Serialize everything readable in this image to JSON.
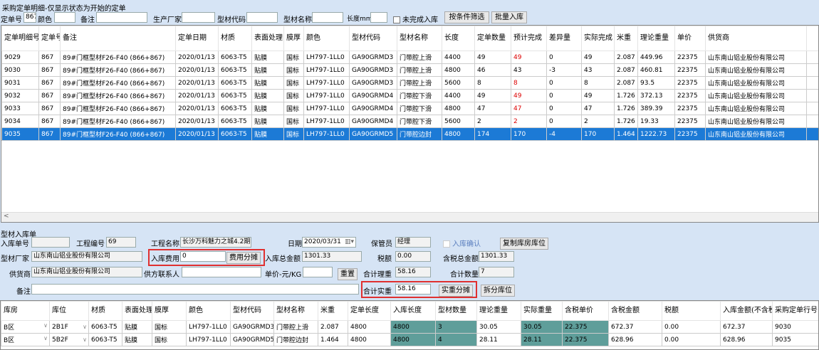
{
  "window_title": "采购定单明细-仅显示状态为开始的定单",
  "filters": {
    "order_no_label": "定单号",
    "order_no": "867",
    "color_label": "颜色",
    "color": "",
    "remark_label": "备注",
    "remark": "",
    "maker_label": "生产厂家",
    "maker": "",
    "code_label": "型材代码",
    "code": "",
    "name_label": "型材名称",
    "name": "",
    "length_label": "长度mm",
    "length": "",
    "incomplete_label": "未完成入库",
    "incomplete_checked": false,
    "filter_button": "按条件筛选",
    "batch_button": "批量入库"
  },
  "order_grid": {
    "columns": [
      "定单明细号",
      "定单号",
      "备注",
      "定单日期",
      "材质",
      "表面处理",
      "膜厚",
      "颜色",
      "型材代码",
      "型材名称",
      "长度",
      "定单数量",
      "预计完成",
      "差异量",
      "实际完成",
      "米重",
      "理论重量",
      "单价",
      "供货商",
      ""
    ],
    "rows": [
      [
        "9029",
        "867",
        "89#门框型材F26-F40 (866+867)",
        "2020/01/13",
        "6063-T5",
        "贴膜",
        "国标",
        "LH797-1LL0",
        "GA90GRMD3",
        "门带腔上滑",
        "4400",
        "49",
        "49",
        "0",
        "49",
        "2.087",
        "449.96",
        "22375",
        "山东南山铝业股份有限公司",
        ""
      ],
      [
        "9030",
        "867",
        "89#门框型材F26-F40 (866+867)",
        "2020/01/13",
        "6063-T5",
        "贴膜",
        "国标",
        "LH797-1LL0",
        "GA90GRMD3",
        "门带腔上滑",
        "4800",
        "46",
        "43",
        "-3",
        "43",
        "2.087",
        "460.81",
        "22375",
        "山东南山铝业股份有限公司",
        ""
      ],
      [
        "9031",
        "867",
        "89#门框型材F26-F40 (866+867)",
        "2020/01/13",
        "6063-T5",
        "贴膜",
        "国标",
        "LH797-1LL0",
        "GA90GRMD3",
        "门带腔上滑",
        "5600",
        "8",
        "8",
        "0",
        "8",
        "2.087",
        "93.5",
        "22375",
        "山东南山铝业股份有限公司",
        ""
      ],
      [
        "9032",
        "867",
        "89#门框型材F26-F40 (866+867)",
        "2020/01/13",
        "6063-T5",
        "贴膜",
        "国标",
        "LH797-1LL0",
        "GA90GRMD4",
        "门带腔下滑",
        "4400",
        "49",
        "49",
        "0",
        "49",
        "1.726",
        "372.13",
        "22375",
        "山东南山铝业股份有限公司",
        ""
      ],
      [
        "9033",
        "867",
        "89#门框型材F26-F40 (866+867)",
        "2020/01/13",
        "6063-T5",
        "贴膜",
        "国标",
        "LH797-1LL0",
        "GA90GRMD4",
        "门带腔下滑",
        "4800",
        "47",
        "47",
        "0",
        "47",
        "1.726",
        "389.39",
        "22375",
        "山东南山铝业股份有限公司",
        ""
      ],
      [
        "9034",
        "867",
        "89#门框型材F26-F40 (866+867)",
        "2020/01/13",
        "6063-T5",
        "贴膜",
        "国标",
        "LH797-1LL0",
        "GA90GRMD4",
        "门带腔下滑",
        "5600",
        "2",
        "2",
        "0",
        "2",
        "1.726",
        "19.33",
        "22375",
        "山东南山铝业股份有限公司",
        ""
      ],
      [
        "9035",
        "867",
        "89#门框型材F26-F40 (866+867)",
        "2020/01/13",
        "6063-T5",
        "贴膜",
        "国标",
        "LH797-1LL0",
        "GA90GRMD5",
        "门带腔边封",
        "4800",
        "174",
        "170",
        "-4",
        "170",
        "1.464",
        "1222.73",
        "22375",
        "山东南山铝业股份有限公司",
        ""
      ]
    ],
    "red_rows": [
      0,
      2,
      3,
      4,
      5
    ],
    "selected_row": 6
  },
  "receipt": {
    "section_title": "型材入库单",
    "receipt_no_label": "入库单号",
    "receipt_no": "",
    "project_no_label": "工程编号",
    "project_no": "69",
    "project_name_label": "工程名称",
    "project_name": "长沙万科魅力之城4.2期",
    "date_label": "日期",
    "date": "2020/03/31",
    "keeper_label": "保管员",
    "keeper": "经理",
    "confirm_label": "入库确认",
    "copy_button": "复制库房库位",
    "maker_label": "型材厂家",
    "maker": "山东南山铝业股份有限公司",
    "fee_label": "入库费用",
    "fee": "0",
    "fee_split_button": "费用分摊",
    "total_label": "入库总金额",
    "total": "1301.33",
    "tax_label": "税额",
    "tax": "0.00",
    "total_tax_label": "含税总金额",
    "total_tax": "1301.33",
    "supplier_label": "供货商",
    "supplier": "山东南山铝业股份有限公司",
    "contact_label": "供方联系人",
    "contact": "",
    "unit_price_label": "单价-元/KG",
    "unit_price": "",
    "reset_button": "重置",
    "theory_weight_label": "合计理重",
    "theory_weight": "58.16",
    "qty_label": "合计数量",
    "qty": "7",
    "remark_label": "备注",
    "remark": "",
    "actual_weight_label": "合计实重",
    "actual_weight": "58.16",
    "weight_split_button": "实重分摊",
    "split_loc_button": "拆分库位"
  },
  "receipt_grid": {
    "columns": [
      "库房",
      "库位",
      "材质",
      "表面处理",
      "膜厚",
      "颜色",
      "型材代码",
      "型材名称",
      "米重",
      "定单长度",
      "入库长度",
      "型材数量",
      "理论重量",
      "实际重量",
      "含税单价",
      "含税金额",
      "税额",
      "入库金额(不含税)",
      "采购定单行号"
    ],
    "rows": [
      [
        "B区",
        "2B1F",
        "6063-T5",
        "贴膜",
        "国标",
        "LH797-1LL0",
        "GA90GRMD3",
        "门带腔上滑",
        "2.087",
        "4800",
        "4800",
        "3",
        "30.05",
        "30.05",
        "22.375",
        "672.37",
        "0.00",
        "672.37",
        "9030"
      ],
      [
        "B区",
        "5B2F",
        "6063-T5",
        "贴膜",
        "国标",
        "LH797-1LL0",
        "GA90GRMD5",
        "门带腔边封",
        "1.464",
        "4800",
        "4800",
        "4",
        "28.11",
        "28.11",
        "22.375",
        "628.96",
        "0.00",
        "628.96",
        "9035"
      ]
    ],
    "highlight_color": "#5f9e9a"
  },
  "colors": {
    "panel": "#d6e4f5",
    "selection": "#1c7ad6",
    "highlight_box": "#e03030"
  }
}
